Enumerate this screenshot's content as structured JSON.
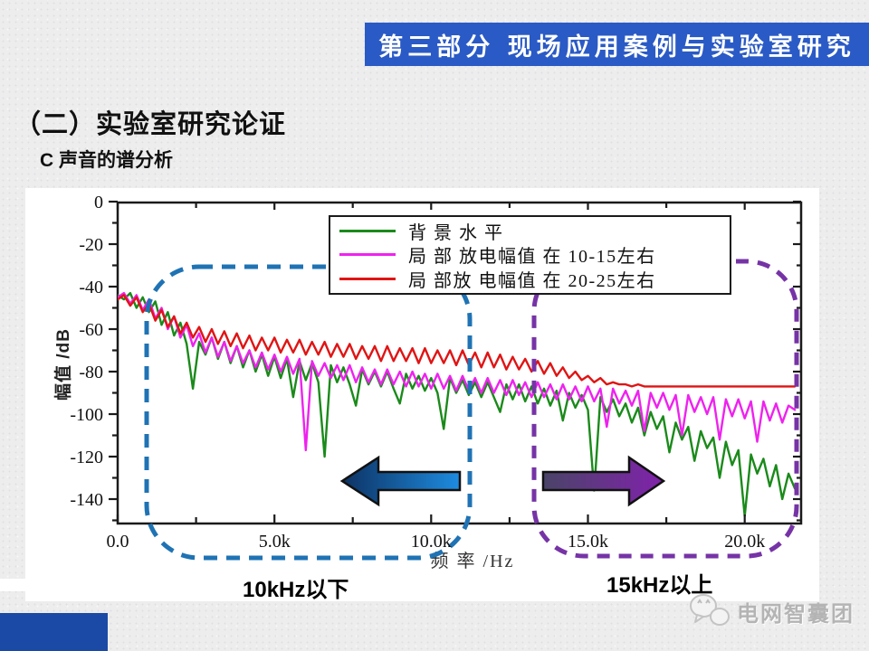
{
  "slide": {
    "banner": "第三部分  现场应用案例与实验室研究",
    "title": "（二）实验室研究论证",
    "subtitle": "C 声音的谱分析",
    "annotation_left": "10kHz以下",
    "annotation_right": "15kHz以上",
    "footer_brand": "电网智囊团"
  },
  "colors": {
    "banner_bg": "#2a5ac5",
    "banner_text": "#ffffff",
    "title_text": "#111111",
    "chart_bg": "#ffffff",
    "dashed_box_low": "#1f73b4",
    "dashed_box_high": "#7633a6",
    "arrow_low_start": "#0d3263",
    "arrow_low_end": "#1e8ce0",
    "arrow_high_start": "#4a4468",
    "arrow_high_end": "#8122ab",
    "corner_block": "#1a4aa5",
    "footer_text": "#b4b4b4"
  },
  "chart_data": {
    "type": "line",
    "title": "",
    "xlabel": "频 率 /Hz",
    "ylabel": "幅值 /dB",
    "xlim": [
      0,
      21800
    ],
    "ylim": [
      -152,
      0
    ],
    "grid": false,
    "legend_position": "inside top center",
    "xticks": {
      "values": [
        0,
        5000,
        10000,
        15000,
        20000
      ],
      "labels": [
        "0.0",
        "5.0k",
        "10.0k",
        "15.0k",
        "20.0k"
      ],
      "minor": [
        2500,
        7500,
        12500,
        17500
      ]
    },
    "yticks": {
      "values": [
        0,
        -20,
        -40,
        -60,
        -80,
        -100,
        -120,
        -140
      ],
      "labels": [
        "0",
        "-20",
        "-40",
        "-60",
        "-80",
        "-100",
        "-120",
        "-140"
      ],
      "minor": [
        -10,
        -30,
        -50,
        -70,
        -90,
        -110,
        -130,
        -150
      ]
    },
    "x_start": 0,
    "x_step": 200,
    "series": [
      {
        "name": "背 景 水 平",
        "color": "#1a8a1a",
        "values": [
          -44,
          -46,
          -43,
          -50,
          -45,
          -52,
          -47,
          -58,
          -52,
          -63,
          -57,
          -67,
          -88,
          -66,
          -72,
          -64,
          -74,
          -66,
          -76,
          -68,
          -78,
          -70,
          -80,
          -72,
          -82,
          -73,
          -83,
          -74,
          -92,
          -75,
          -84,
          -76,
          -85,
          -120,
          -77,
          -85,
          -78,
          -86,
          -96,
          -79,
          -86,
          -80,
          -87,
          -80,
          -88,
          -95,
          -81,
          -88,
          -82,
          -89,
          -83,
          -90,
          -107,
          -83,
          -90,
          -84,
          -91,
          -85,
          -92,
          -85,
          -92,
          -99,
          -86,
          -93,
          -86,
          -94,
          -87,
          -95,
          -88,
          -96,
          -89,
          -103,
          -90,
          -97,
          -91,
          -98,
          -136,
          -92,
          -99,
          -93,
          -101,
          -95,
          -104,
          -97,
          -110,
          -99,
          -107,
          -101,
          -118,
          -104,
          -112,
          -106,
          -122,
          -108,
          -116,
          -111,
          -130,
          -113,
          -124,
          -117,
          -148,
          -119,
          -128,
          -121,
          -134,
          -124,
          -140,
          -128,
          -135
        ]
      },
      {
        "name": "局 部 放电幅值 在 10-15左右",
        "color": "#ee22ee",
        "values": [
          -45,
          -43,
          -48,
          -44,
          -51,
          -46,
          -55,
          -50,
          -60,
          -54,
          -64,
          -58,
          -68,
          -62,
          -71,
          -64,
          -73,
          -66,
          -75,
          -68,
          -76,
          -70,
          -78,
          -71,
          -79,
          -72,
          -80,
          -73,
          -81,
          -74,
          -117,
          -75,
          -82,
          -76,
          -83,
          -77,
          -84,
          -77,
          -85,
          -78,
          -85,
          -79,
          -86,
          -79,
          -86,
          -80,
          -87,
          -80,
          -87,
          -81,
          -88,
          -81,
          -88,
          -82,
          -89,
          -82,
          -89,
          -83,
          -90,
          -83,
          -90,
          -84,
          -91,
          -84,
          -91,
          -85,
          -92,
          -85,
          -92,
          -86,
          -93,
          -86,
          -93,
          -87,
          -94,
          -87,
          -94,
          -88,
          -106,
          -88,
          -95,
          -89,
          -96,
          -89,
          -108,
          -90,
          -97,
          -90,
          -98,
          -91,
          -110,
          -91,
          -99,
          -92,
          -100,
          -92,
          -112,
          -93,
          -101,
          -93,
          -102,
          -94,
          -113,
          -94,
          -103,
          -95,
          -104,
          -96,
          -98
        ]
      },
      {
        "name": "局 部放 电幅值 在 20-25左右",
        "color": "#e01414",
        "values": [
          -46,
          -44,
          -49,
          -45,
          -52,
          -48,
          -56,
          -51,
          -59,
          -54,
          -62,
          -57,
          -64,
          -59,
          -66,
          -60,
          -67,
          -61,
          -68,
          -62,
          -69,
          -63,
          -70,
          -64,
          -70,
          -64,
          -71,
          -65,
          -71,
          -65,
          -72,
          -66,
          -72,
          -66,
          -73,
          -67,
          -73,
          -67,
          -74,
          -68,
          -74,
          -68,
          -75,
          -68,
          -75,
          -69,
          -75,
          -69,
          -76,
          -69,
          -76,
          -70,
          -76,
          -70,
          -77,
          -70,
          -77,
          -71,
          -78,
          -71,
          -78,
          -72,
          -79,
          -73,
          -79,
          -74,
          -80,
          -75,
          -81,
          -76,
          -82,
          -78,
          -83,
          -80,
          -84,
          -82,
          -85,
          -83,
          -86,
          -85,
          -86,
          -86,
          -87,
          -86,
          -87,
          -87,
          -87,
          -87,
          -87,
          -87,
          -87,
          -87,
          -87,
          -87,
          -87,
          -87,
          -87,
          -87,
          -87,
          -87,
          -87,
          -87,
          -87,
          -87,
          -87,
          -87,
          -87,
          -87,
          -87
        ]
      }
    ]
  }
}
